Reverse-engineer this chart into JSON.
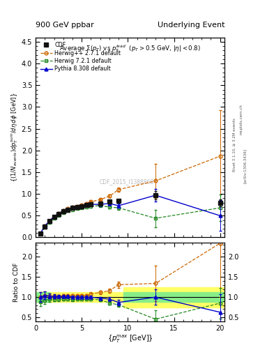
{
  "title_left": "900 GeV ppbar",
  "title_right": "Underlying Event",
  "plot_title": "Average $\\Sigma(p_T)$ vs $p_T^{lead}$  ($p_T > 0.5$ GeV, $|\\eta| < 0.8$)",
  "watermark": "CDF_2015_I1388868",
  "ylabel_main": "$\\{(1/N_{events}) dp_T^{sum}/d\\eta\\, d\\phi$ [GeV]$\\}$",
  "ylabel_ratio": "Ratio to CDF",
  "xlabel": "$\\{p_T^{max}$ [GeV]$\\}$",
  "right_label1": "mcplots.cern.ch",
  "right_label2": "Rivet 3.1.10, ≥ 3.2M events",
  "right_label3": "[arXiv:1306.3436]",
  "cdf_x": [
    0.5,
    1.0,
    1.5,
    2.0,
    2.5,
    3.0,
    3.5,
    4.0,
    4.5,
    5.0,
    5.5,
    6.0,
    7.0,
    8.0,
    9.0,
    13.0,
    20.0
  ],
  "cdf_y": [
    0.09,
    0.25,
    0.37,
    0.47,
    0.54,
    0.6,
    0.64,
    0.68,
    0.7,
    0.72,
    0.74,
    0.76,
    0.78,
    0.82,
    0.84,
    0.97,
    0.8
  ],
  "cdf_yerr": [
    0.01,
    0.02,
    0.02,
    0.02,
    0.02,
    0.02,
    0.02,
    0.02,
    0.02,
    0.02,
    0.02,
    0.02,
    0.02,
    0.02,
    0.03,
    0.1,
    0.08
  ],
  "hpp_x": [
    0.5,
    1.0,
    1.5,
    2.0,
    2.5,
    3.0,
    3.5,
    4.0,
    4.5,
    5.0,
    5.5,
    6.0,
    7.0,
    8.0,
    9.0,
    13.0,
    20.0
  ],
  "hpp_y": [
    0.09,
    0.26,
    0.38,
    0.48,
    0.55,
    0.62,
    0.66,
    0.7,
    0.72,
    0.75,
    0.77,
    0.82,
    0.87,
    0.95,
    1.1,
    1.3,
    1.87
  ],
  "hpp_yerr": [
    0.005,
    0.01,
    0.01,
    0.01,
    0.01,
    0.01,
    0.01,
    0.01,
    0.01,
    0.01,
    0.01,
    0.02,
    0.02,
    0.03,
    0.05,
    0.4,
    1.05
  ],
  "h72_x": [
    0.5,
    1.0,
    1.5,
    2.0,
    2.5,
    3.0,
    3.5,
    4.0,
    4.5,
    5.0,
    5.5,
    6.0,
    7.0,
    8.0,
    9.0,
    13.0,
    20.0
  ],
  "h72_y": [
    0.08,
    0.23,
    0.35,
    0.44,
    0.51,
    0.57,
    0.61,
    0.64,
    0.66,
    0.68,
    0.7,
    0.72,
    0.73,
    0.7,
    0.68,
    0.44,
    0.68
  ],
  "h72_yerr": [
    0.005,
    0.01,
    0.01,
    0.01,
    0.01,
    0.01,
    0.01,
    0.01,
    0.01,
    0.01,
    0.01,
    0.01,
    0.02,
    0.03,
    0.04,
    0.2,
    0.3
  ],
  "py8_x": [
    0.5,
    1.0,
    1.5,
    2.0,
    2.5,
    3.0,
    3.5,
    4.0,
    4.5,
    5.0,
    5.5,
    6.0,
    7.0,
    8.0,
    9.0,
    13.0,
    20.0
  ],
  "py8_y": [
    0.09,
    0.26,
    0.38,
    0.48,
    0.55,
    0.61,
    0.65,
    0.68,
    0.7,
    0.72,
    0.74,
    0.76,
    0.76,
    0.78,
    0.73,
    0.97,
    0.5
  ],
  "py8_yerr": [
    0.005,
    0.01,
    0.01,
    0.01,
    0.01,
    0.01,
    0.01,
    0.01,
    0.01,
    0.01,
    0.01,
    0.02,
    0.02,
    0.03,
    0.05,
    0.15,
    0.35
  ],
  "ylim_main": [
    0.0,
    4.6
  ],
  "ylim_ratio": [
    0.4,
    2.35
  ],
  "xlim": [
    0.0,
    20.5
  ],
  "color_cdf": "#111111",
  "color_hpp": "#cc6600",
  "color_h72": "#228822",
  "color_py8": "#0000cc",
  "color_band_yellow": "#ffff66",
  "color_band_green": "#88ee88",
  "yticks_main": [
    0.0,
    0.5,
    1.0,
    1.5,
    2.0,
    2.5,
    3.0,
    3.5,
    4.0,
    4.5
  ],
  "yticks_ratio": [
    0.5,
    1.0,
    1.5,
    2.0
  ],
  "xticks": [
    0,
    5,
    10,
    15,
    20
  ]
}
